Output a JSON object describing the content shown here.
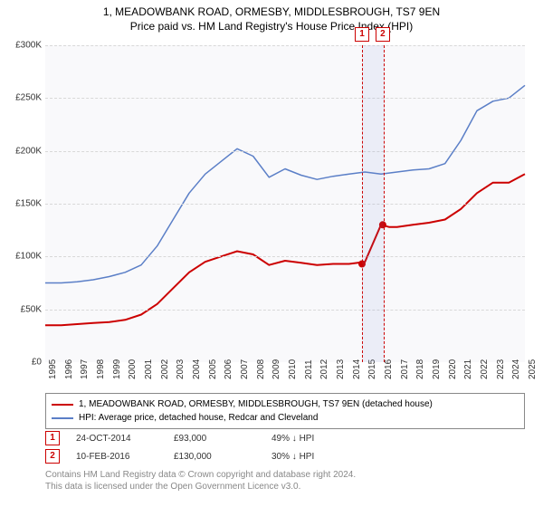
{
  "title_line1": "1, MEADOWBANK ROAD, ORMESBY, MIDDLESBROUGH, TS7 9EN",
  "title_line2": "Price paid vs. HM Land Registry's House Price Index (HPI)",
  "chart": {
    "type": "line",
    "background_color": "#f9f9fb",
    "grid_color": "#d8d8d8",
    "x_years": [
      1995,
      1996,
      1997,
      1998,
      1999,
      2000,
      2001,
      2002,
      2003,
      2004,
      2005,
      2006,
      2007,
      2008,
      2009,
      2010,
      2011,
      2012,
      2013,
      2014,
      2015,
      2016,
      2017,
      2018,
      2019,
      2020,
      2021,
      2022,
      2023,
      2024,
      2025
    ],
    "y_ticks": [
      0,
      50000,
      100000,
      150000,
      200000,
      250000,
      300000
    ],
    "y_tick_labels": [
      "£0",
      "£50K",
      "£100K",
      "£150K",
      "£200K",
      "£250K",
      "£300K"
    ],
    "ylim": [
      0,
      300000
    ],
    "series": [
      {
        "name": "price_paid",
        "label": "1, MEADOWBANK ROAD, ORMESBY, MIDDLESBROUGH, TS7 9EN (detached house)",
        "color": "#cc0000",
        "line_width": 2,
        "data": [
          [
            1995,
            35000
          ],
          [
            1996,
            35000
          ],
          [
            1997,
            36000
          ],
          [
            1998,
            37000
          ],
          [
            1999,
            38000
          ],
          [
            2000,
            40000
          ],
          [
            2001,
            45000
          ],
          [
            2002,
            55000
          ],
          [
            2003,
            70000
          ],
          [
            2004,
            85000
          ],
          [
            2005,
            95000
          ],
          [
            2006,
            100000
          ],
          [
            2007,
            105000
          ],
          [
            2008,
            102000
          ],
          [
            2009,
            92000
          ],
          [
            2010,
            96000
          ],
          [
            2011,
            94000
          ],
          [
            2012,
            92000
          ],
          [
            2013,
            93000
          ],
          [
            2014,
            93000
          ],
          [
            2015,
            95000
          ],
          [
            2016,
            130000
          ],
          [
            2016.5,
            128000
          ],
          [
            2017,
            128000
          ],
          [
            2018,
            130000
          ],
          [
            2019,
            132000
          ],
          [
            2020,
            135000
          ],
          [
            2021,
            145000
          ],
          [
            2022,
            160000
          ],
          [
            2023,
            170000
          ],
          [
            2024,
            170000
          ],
          [
            2025,
            178000
          ]
        ]
      },
      {
        "name": "hpi",
        "label": "HPI: Average price, detached house, Redcar and Cleveland",
        "color": "#5b7fc7",
        "line_width": 1.5,
        "data": [
          [
            1995,
            75000
          ],
          [
            1996,
            75000
          ],
          [
            1997,
            76000
          ],
          [
            1998,
            78000
          ],
          [
            1999,
            81000
          ],
          [
            2000,
            85000
          ],
          [
            2001,
            92000
          ],
          [
            2002,
            110000
          ],
          [
            2003,
            135000
          ],
          [
            2004,
            160000
          ],
          [
            2005,
            178000
          ],
          [
            2006,
            190000
          ],
          [
            2007,
            202000
          ],
          [
            2008,
            195000
          ],
          [
            2009,
            175000
          ],
          [
            2010,
            183000
          ],
          [
            2011,
            177000
          ],
          [
            2012,
            173000
          ],
          [
            2013,
            176000
          ],
          [
            2014,
            178000
          ],
          [
            2015,
            180000
          ],
          [
            2016,
            178000
          ],
          [
            2017,
            180000
          ],
          [
            2018,
            182000
          ],
          [
            2019,
            183000
          ],
          [
            2020,
            188000
          ],
          [
            2021,
            210000
          ],
          [
            2022,
            238000
          ],
          [
            2023,
            247000
          ],
          [
            2024,
            250000
          ],
          [
            2025,
            262000
          ]
        ]
      }
    ],
    "sale_markers": [
      {
        "id": "1",
        "year": 2014.81,
        "value": 93000,
        "date": "24-OCT-2014",
        "price": "£93,000",
        "delta": "49% ↓ HPI"
      },
      {
        "id": "2",
        "year": 2016.11,
        "value": 130000,
        "date": "10-FEB-2016",
        "price": "£130,000",
        "delta": "30% ↓ HPI"
      }
    ],
    "marker_dot_color": "#cc0000",
    "marker_box_border": "#cc0000",
    "marker_band_fill": "rgba(120,140,220,0.10)"
  },
  "attribution_line1": "Contains HM Land Registry data © Crown copyright and database right 2024.",
  "attribution_line2": "This data is licensed under the Open Government Licence v3.0."
}
